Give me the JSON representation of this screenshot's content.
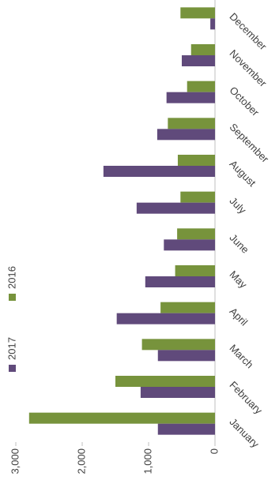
{
  "chart_data": {
    "type": "bar",
    "categories": [
      "January",
      "February",
      "March",
      "April",
      "May",
      "June",
      "July",
      "August",
      "September",
      "October",
      "November",
      "December"
    ],
    "series": [
      {
        "name": "2016",
        "color": "#77933c",
        "values": [
          2800,
          1500,
          1100,
          820,
          600,
          570,
          520,
          560,
          710,
          420,
          360,
          520
        ]
      },
      {
        "name": "2017",
        "color": "#604a7b",
        "values": [
          860,
          1120,
          860,
          1480,
          1050,
          770,
          1180,
          1680,
          870,
          730,
          500,
          70
        ]
      }
    ],
    "ylim": [
      0,
      3000
    ],
    "yticks": [
      0,
      {
        "value": 1000,
        "label": "1,000"
      },
      {
        "value": 2000,
        "label": "2,000"
      },
      {
        "value": 3000,
        "label": "3,000"
      }
    ],
    "grid": false
  }
}
